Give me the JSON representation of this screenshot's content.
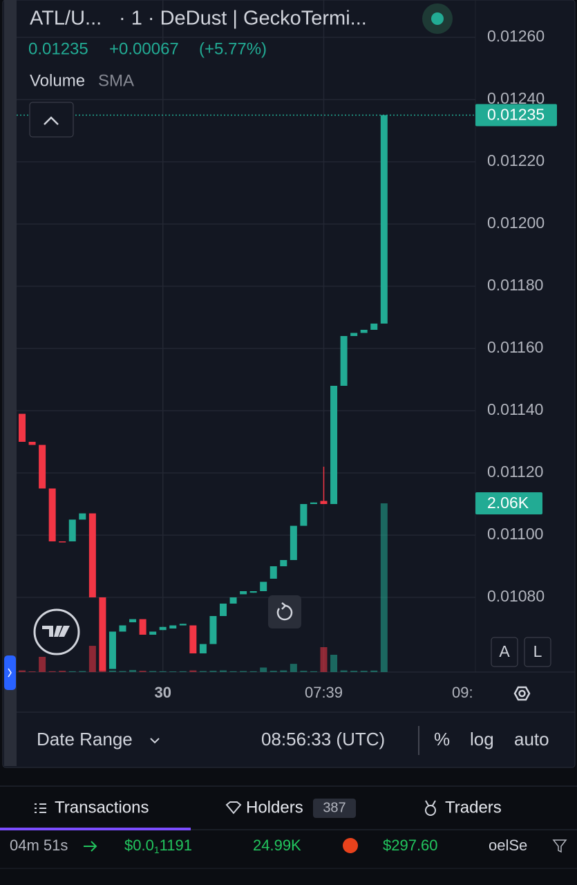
{
  "header": {
    "symbol": "ATL/U...",
    "interval_source": "· 1 · DeDust | GeckoTermi...",
    "last": "0.01235",
    "change": "+0.00067",
    "change_pct": "(+5.77%)",
    "indicator_name": "Volume",
    "indicator_param": "SMA"
  },
  "chart_data": {
    "type": "candlestick",
    "categories": [
      null,
      null,
      null,
      null,
      null,
      null,
      null,
      null,
      null,
      null,
      null,
      null,
      null,
      null,
      "30",
      null,
      null,
      null,
      null,
      null,
      null,
      null,
      null,
      null,
      null,
      null,
      null,
      null,
      null,
      null,
      "07:39",
      null,
      null,
      null,
      null,
      null,
      null
    ],
    "open": [
      0.01139,
      0.0113,
      0.01129,
      0.01115,
      0.01098,
      0.01098,
      0.01105,
      0.01107,
      0.0108,
      0.01057,
      0.01069,
      0.01072,
      0.01073,
      0.01068,
      0.010695,
      0.0107,
      0.01071,
      0.01071,
      0.01062,
      0.01065,
      0.01074,
      0.01078,
      0.01081,
      0.010815,
      0.01082,
      0.01086,
      0.0109,
      0.01092,
      0.01103,
      0.0111,
      0.01111,
      0.0111,
      0.01148,
      0.01164,
      0.01165,
      0.01166,
      0.01168
    ],
    "high": [
      0.01139,
      0.0113,
      0.01129,
      0.01115,
      0.01098,
      0.01105,
      0.01107,
      0.01107,
      0.0108,
      0.01069,
      0.01071,
      0.01073,
      0.01073,
      0.01069,
      0.010705,
      0.01071,
      0.010715,
      0.01071,
      0.01065,
      0.01074,
      0.01078,
      0.0108,
      0.01082,
      0.01082,
      0.01085,
      0.0109,
      0.01092,
      0.01103,
      0.0111,
      0.011105,
      0.01122,
      0.01148,
      0.01164,
      0.01165,
      0.01166,
      0.01168,
      0.01235
    ],
    "low": [
      0.0113,
      0.01129,
      0.01115,
      0.01098,
      0.010978,
      0.01098,
      0.01105,
      0.0108,
      0.010564,
      0.01057,
      0.01069,
      0.01072,
      0.01068,
      0.01068,
      0.010695,
      0.0107,
      0.01071,
      0.01062,
      0.01062,
      0.01065,
      0.01074,
      0.01078,
      0.01081,
      0.010815,
      0.01082,
      0.01086,
      0.0109,
      0.01092,
      0.01103,
      0.0111,
      0.0111,
      0.0111,
      0.01148,
      0.01164,
      0.01165,
      0.01166,
      0.01168
    ],
    "close": [
      0.0113,
      0.01129,
      0.01115,
      0.01098,
      0.010978,
      0.01105,
      0.01107,
      0.0108,
      0.010564,
      0.01069,
      0.01071,
      0.01073,
      0.01068,
      0.01069,
      0.010705,
      0.01071,
      0.010715,
      0.01062,
      0.01065,
      0.01074,
      0.01078,
      0.0108,
      0.01082,
      0.01082,
      0.01085,
      0.0109,
      0.01092,
      0.01103,
      0.0111,
      0.011105,
      0.0111,
      0.01148,
      0.01164,
      0.01165,
      0.01166,
      0.01168,
      0.01235
    ],
    "up_color": "#22ab94",
    "down_color": "#f23645",
    "ylim": [
      0.01056,
      0.01272
    ],
    "yticks": [
      {
        "value": 0.0108,
        "label": "0.01080"
      },
      {
        "value": 0.011,
        "label": "0.01100"
      },
      {
        "value": 0.0112,
        "label": "0.01120"
      },
      {
        "value": 0.0114,
        "label": "0.01140"
      },
      {
        "value": 0.0116,
        "label": "0.01160"
      },
      {
        "value": 0.0118,
        "label": "0.01180"
      },
      {
        "value": 0.012,
        "label": "0.01200"
      },
      {
        "value": 0.0122,
        "label": "0.01220"
      },
      {
        "value": 0.0124,
        "label": "0.01240"
      },
      {
        "value": 0.0126,
        "label": "0.01260"
      }
    ],
    "grid": true,
    "volume": {
      "name": "Volume",
      "values": [
        20,
        8,
        186,
        10,
        15,
        10,
        12,
        320,
        40,
        18,
        12,
        25,
        15,
        12,
        10,
        8,
        10,
        20,
        12,
        15,
        20,
        10,
        12,
        10,
        55,
        15,
        20,
        100,
        15,
        10,
        304,
        211,
        20,
        15,
        15,
        18,
        2060
      ],
      "value_labels": [
        null,
        null,
        null,
        null,
        null,
        null,
        null,
        null,
        null,
        null,
        null,
        null,
        null,
        null,
        null,
        null,
        null,
        null,
        null,
        null,
        null,
        null,
        null,
        null,
        null,
        null,
        null,
        null,
        null,
        null,
        null,
        null,
        null,
        null,
        null,
        null,
        "2.06K"
      ],
      "ylim": [
        0,
        8206
      ]
    },
    "x_overflow_label": "09:"
  },
  "scale_buttons": [
    "A",
    "L"
  ],
  "toolbar": {
    "date_range": "Date Range",
    "clock": "08:56:33 (UTC)",
    "percent": "%",
    "log": "log",
    "auto": "auto"
  },
  "tabs": [
    {
      "label": "Transactions"
    },
    {
      "label": "Holders",
      "count": 387
    },
    {
      "label": "Traders"
    }
  ],
  "transaction": {
    "age": "04m 51s",
    "price_prefix": "$0.0",
    "price_zeros": "1",
    "price_digits": "1191",
    "amount": "24.99K",
    "value": "$297.60",
    "maker": "oelSe"
  }
}
